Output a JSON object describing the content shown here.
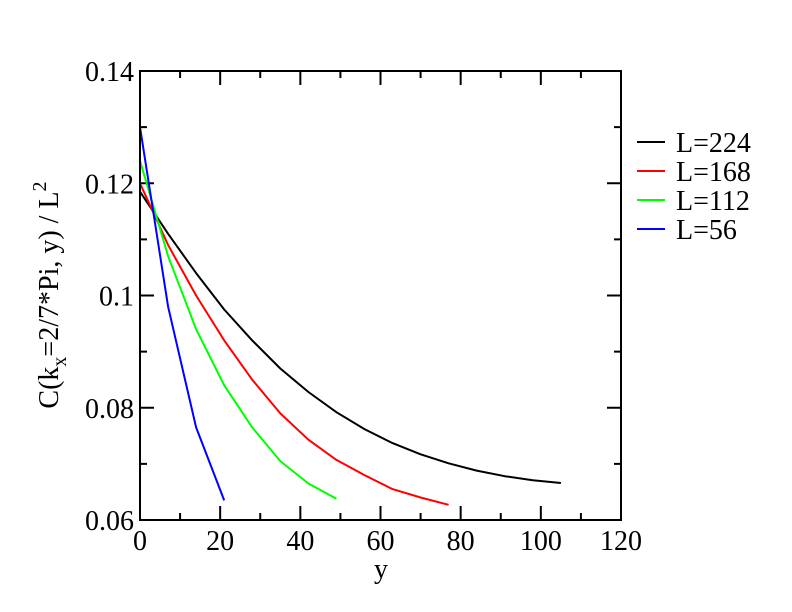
{
  "chart_data": {
    "type": "line",
    "xlabel": "y",
    "ylabel": {
      "prefix": "C(k",
      "subscript": "x",
      "middle": "=2/7*Pi, y) / L",
      "superscript": "2"
    },
    "xlim": [
      0,
      120
    ],
    "ylim": [
      0.06,
      0.14
    ],
    "x_ticks": [
      {
        "value": 0,
        "label": "0"
      },
      {
        "value": 20,
        "label": "20"
      },
      {
        "value": 40,
        "label": "40"
      },
      {
        "value": 60,
        "label": "60"
      },
      {
        "value": 80,
        "label": "80"
      },
      {
        "value": 100,
        "label": "100"
      },
      {
        "value": 120,
        "label": "120"
      }
    ],
    "y_ticks": [
      {
        "value": 0.06,
        "label": "0.06"
      },
      {
        "value": 0.08,
        "label": "0.08"
      },
      {
        "value": 0.1,
        "label": "0.1"
      },
      {
        "value": 0.12,
        "label": "0.12"
      },
      {
        "value": 0.14,
        "label": "0.14"
      }
    ],
    "grid": false,
    "legend_position": "top-right",
    "series": [
      {
        "name": "L=224",
        "color": "#000000",
        "x": [
          0,
          7,
          14,
          21,
          28,
          35,
          42,
          49,
          56,
          63,
          70,
          77,
          84,
          91,
          98,
          105
        ],
        "y": [
          0.1185,
          0.111,
          0.104,
          0.0975,
          0.092,
          0.087,
          0.0828,
          0.0792,
          0.0762,
          0.0737,
          0.0717,
          0.0701,
          0.0688,
          0.0678,
          0.0671,
          0.0666
        ]
      },
      {
        "name": "L=168",
        "color": "#ff0000",
        "x": [
          0,
          7,
          14,
          21,
          28,
          35,
          42,
          49,
          56,
          63,
          70,
          77
        ],
        "y": [
          0.12,
          0.109,
          0.1,
          0.092,
          0.085,
          0.079,
          0.0743,
          0.0707,
          0.068,
          0.0655,
          0.064,
          0.0627
        ]
      },
      {
        "name": "L=112",
        "color": "#00ff00",
        "x": [
          0,
          7,
          14,
          21,
          28,
          35,
          42,
          49
        ],
        "y": [
          0.124,
          0.107,
          0.094,
          0.084,
          0.0765,
          0.0705,
          0.0665,
          0.0638
        ]
      },
      {
        "name": "L=56",
        "color": "#0000ff",
        "x": [
          0,
          7,
          14,
          21
        ],
        "y": [
          0.13,
          0.098,
          0.0765,
          0.0635
        ]
      }
    ]
  }
}
